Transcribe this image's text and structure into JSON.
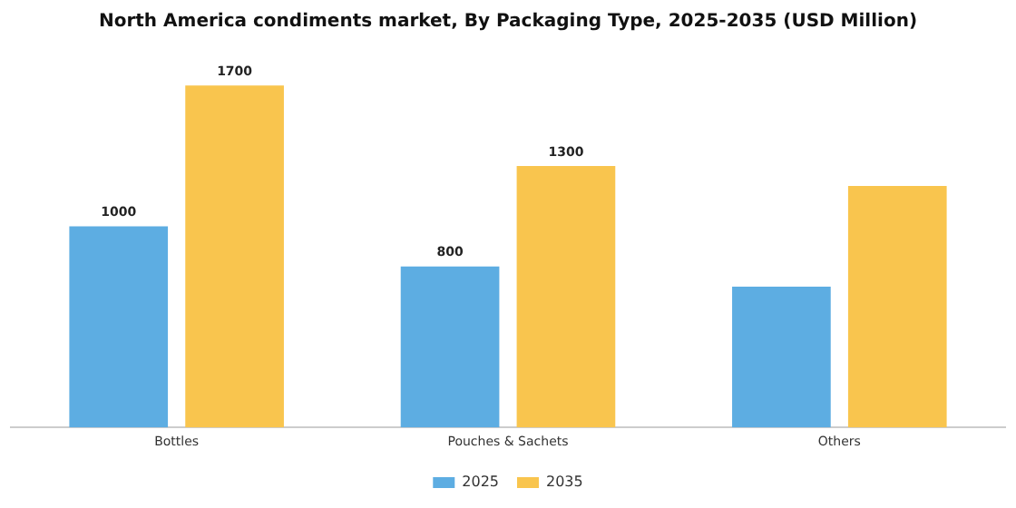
{
  "chart_data": {
    "type": "bar",
    "title": "North America condiments market, By Packaging Type, 2025-2035 (USD Million)",
    "categories": [
      "Bottles",
      "Pouches & Sachets",
      "Others"
    ],
    "series": [
      {
        "name": "2025",
        "color": "#5dade2",
        "values": [
          1000,
          800,
          700
        ],
        "value_labels": [
          "1000",
          "800",
          null
        ]
      },
      {
        "name": "2035",
        "color": "#f9c54e",
        "values": [
          1700,
          1300,
          1200
        ],
        "value_labels": [
          "1700",
          "1300",
          null
        ]
      }
    ],
    "legend": "bottom",
    "grid": false,
    "tick_labels": "x"
  }
}
